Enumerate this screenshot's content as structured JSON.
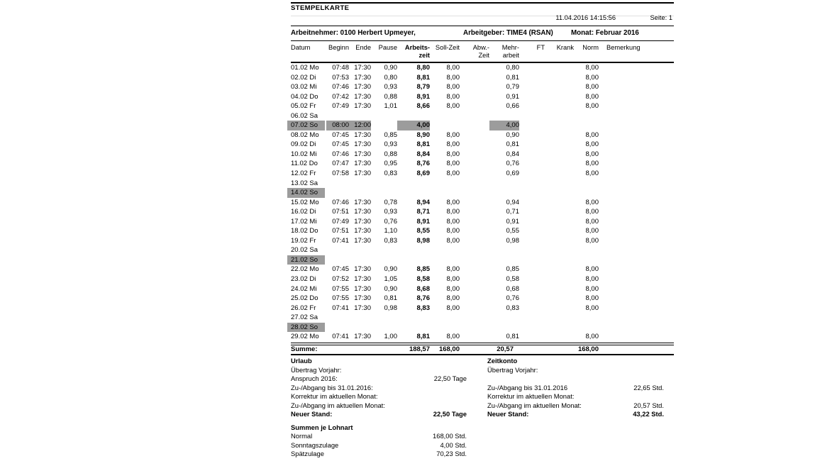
{
  "title": "STEMPELKARTE",
  "meta": {
    "printed": "11.04.2016 14:15:56",
    "page_label": "Seite: 1"
  },
  "header": {
    "employee": "Arbeitnehmer: 0100 Herbert Upmeyer,",
    "employer": "Arbeitgeber: TIME4 (RSAN)",
    "month": "Monat: Februar 2016"
  },
  "colors": {
    "highlight_gray": "#9c9c9c",
    "rule_black": "#000000",
    "rule_light": "#e0e0e0",
    "text": "#000000",
    "background": "#ffffff"
  },
  "table": {
    "columns": [
      {
        "id": "datum",
        "label": "Datum",
        "label2": ""
      },
      {
        "id": "beginn",
        "label": "Beginn",
        "label2": ""
      },
      {
        "id": "ende",
        "label": "Ende",
        "label2": ""
      },
      {
        "id": "pause",
        "label": "Pause",
        "label2": ""
      },
      {
        "id": "arbeitszeit",
        "label": "Arbeits-",
        "label2": "zeit"
      },
      {
        "id": "sollzeit",
        "label": "Soll-Zeit",
        "label2": ""
      },
      {
        "id": "abwzeit",
        "label": "Abw.-",
        "label2": "Zeit"
      },
      {
        "id": "mehrarbeit",
        "label": "Mehr-",
        "label2": "arbeit"
      },
      {
        "id": "ft",
        "label": "FT",
        "label2": ""
      },
      {
        "id": "krank",
        "label": "Krank",
        "label2": ""
      },
      {
        "id": "norm",
        "label": "Norm",
        "label2": ""
      },
      {
        "id": "bemerkung",
        "label": "Bemerkung",
        "label2": ""
      }
    ],
    "rows": [
      {
        "c": [
          "01.02 Mo",
          "07:48",
          "17:30",
          "0,90",
          "8,80",
          "8,00",
          "",
          "0,80",
          "",
          "",
          "8,00",
          ""
        ],
        "hl": []
      },
      {
        "c": [
          "02.02 Di",
          "07:53",
          "17:30",
          "0,80",
          "8,81",
          "8,00",
          "",
          "0,81",
          "",
          "",
          "8,00",
          ""
        ],
        "hl": []
      },
      {
        "c": [
          "03.02 Mi",
          "07:46",
          "17:30",
          "0,93",
          "8,79",
          "8,00",
          "",
          "0,79",
          "",
          "",
          "8,00",
          ""
        ],
        "hl": []
      },
      {
        "c": [
          "04.02 Do",
          "07:42",
          "17:30",
          "0,88",
          "8,91",
          "8,00",
          "",
          "0,91",
          "",
          "",
          "8,00",
          ""
        ],
        "hl": []
      },
      {
        "c": [
          "05.02 Fr",
          "07:49",
          "17:30",
          "1,01",
          "8,66",
          "8,00",
          "",
          "0,66",
          "",
          "",
          "8,00",
          ""
        ],
        "hl": []
      },
      {
        "c": [
          "06.02 Sa",
          "",
          "",
          "",
          "",
          "",
          "",
          "",
          "",
          "",
          "",
          ""
        ],
        "hl": []
      },
      {
        "c": [
          "07.02 So",
          "08:00",
          "12:00",
          "",
          "4,00",
          "",
          "",
          "4,00",
          "",
          "",
          "",
          ""
        ],
        "hl": [
          0,
          1,
          2,
          4,
          7
        ]
      },
      {
        "c": [
          "08.02 Mo",
          "07:45",
          "17:30",
          "0,85",
          "8,90",
          "8,00",
          "",
          "0,90",
          "",
          "",
          "8,00",
          ""
        ],
        "hl": []
      },
      {
        "c": [
          "09.02 Di",
          "07:45",
          "17:30",
          "0,93",
          "8,81",
          "8,00",
          "",
          "0,81",
          "",
          "",
          "8,00",
          ""
        ],
        "hl": []
      },
      {
        "c": [
          "10.02 Mi",
          "07:46",
          "17:30",
          "0,88",
          "8,84",
          "8,00",
          "",
          "0,84",
          "",
          "",
          "8,00",
          ""
        ],
        "hl": []
      },
      {
        "c": [
          "11.02 Do",
          "07:47",
          "17:30",
          "0,95",
          "8,76",
          "8,00",
          "",
          "0,76",
          "",
          "",
          "8,00",
          ""
        ],
        "hl": []
      },
      {
        "c": [
          "12.02 Fr",
          "07:58",
          "17:30",
          "0,83",
          "8,69",
          "8,00",
          "",
          "0,69",
          "",
          "",
          "8,00",
          ""
        ],
        "hl": []
      },
      {
        "c": [
          "13.02 Sa",
          "",
          "",
          "",
          "",
          "",
          "",
          "",
          "",
          "",
          "",
          ""
        ],
        "hl": []
      },
      {
        "c": [
          "14.02 So",
          "",
          "",
          "",
          "",
          "",
          "",
          "",
          "",
          "",
          "",
          ""
        ],
        "hl": [
          0
        ]
      },
      {
        "c": [
          "15.02 Mo",
          "07:46",
          "17:30",
          "0,78",
          "8,94",
          "8,00",
          "",
          "0,94",
          "",
          "",
          "8,00",
          ""
        ],
        "hl": []
      },
      {
        "c": [
          "16.02 Di",
          "07:51",
          "17:30",
          "0,93",
          "8,71",
          "8,00",
          "",
          "0,71",
          "",
          "",
          "8,00",
          ""
        ],
        "hl": []
      },
      {
        "c": [
          "17.02 Mi",
          "07:49",
          "17:30",
          "0,76",
          "8,91",
          "8,00",
          "",
          "0,91",
          "",
          "",
          "8,00",
          ""
        ],
        "hl": []
      },
      {
        "c": [
          "18.02 Do",
          "07:51",
          "17:30",
          "1,10",
          "8,55",
          "8,00",
          "",
          "0,55",
          "",
          "",
          "8,00",
          ""
        ],
        "hl": []
      },
      {
        "c": [
          "19.02 Fr",
          "07:41",
          "17:30",
          "0,83",
          "8,98",
          "8,00",
          "",
          "0,98",
          "",
          "",
          "8,00",
          ""
        ],
        "hl": []
      },
      {
        "c": [
          "20.02 Sa",
          "",
          "",
          "",
          "",
          "",
          "",
          "",
          "",
          "",
          "",
          ""
        ],
        "hl": []
      },
      {
        "c": [
          "21.02 So",
          "",
          "",
          "",
          "",
          "",
          "",
          "",
          "",
          "",
          "",
          ""
        ],
        "hl": [
          0
        ]
      },
      {
        "c": [
          "22.02 Mo",
          "07:45",
          "17:30",
          "0,90",
          "8,85",
          "8,00",
          "",
          "0,85",
          "",
          "",
          "8,00",
          ""
        ],
        "hl": []
      },
      {
        "c": [
          "23.02 Di",
          "07:52",
          "17:30",
          "1,05",
          "8,58",
          "8,00",
          "",
          "0,58",
          "",
          "",
          "8,00",
          ""
        ],
        "hl": []
      },
      {
        "c": [
          "24.02 Mi",
          "07:55",
          "17:30",
          "0,90",
          "8,68",
          "8,00",
          "",
          "0,68",
          "",
          "",
          "8,00",
          ""
        ],
        "hl": []
      },
      {
        "c": [
          "25.02 Do",
          "07:55",
          "17:30",
          "0,81",
          "8,76",
          "8,00",
          "",
          "0,76",
          "",
          "",
          "8,00",
          ""
        ],
        "hl": []
      },
      {
        "c": [
          "26.02 Fr",
          "07:41",
          "17:30",
          "0,98",
          "8,83",
          "8,00",
          "",
          "0,83",
          "",
          "",
          "8,00",
          ""
        ],
        "hl": []
      },
      {
        "c": [
          "27.02 Sa",
          "",
          "",
          "",
          "",
          "",
          "",
          "",
          "",
          "",
          "",
          ""
        ],
        "hl": []
      },
      {
        "c": [
          "28.02 So",
          "",
          "",
          "",
          "",
          "",
          "",
          "",
          "",
          "",
          "",
          ""
        ],
        "hl": [
          0
        ]
      },
      {
        "c": [
          "29.02 Mo",
          "07:41",
          "17:30",
          "1,00",
          "8,81",
          "8,00",
          "",
          "0,81",
          "",
          "",
          "8,00",
          ""
        ],
        "hl": []
      }
    ],
    "summe": {
      "c": [
        "Summe:",
        "",
        "",
        "",
        "188,57",
        "168,00",
        "",
        "20,57",
        "",
        "",
        "168,00",
        ""
      ]
    }
  },
  "urlaub": {
    "heading": "Urlaub",
    "rows": [
      {
        "label": "Übertrag Vorjahr:",
        "value": ""
      },
      {
        "label": "Anspruch 2016:",
        "value": "22,50 Tage"
      },
      {
        "label": "Zu-/Abgang bis 31.01.2016:",
        "value": ""
      },
      {
        "label": "Korrektur im aktuellen Monat:",
        "value": ""
      },
      {
        "label": "Zu-/Abgang im aktuellen Monat:",
        "value": ""
      },
      {
        "label": "Neuer Stand:",
        "value": "22,50 Tage",
        "bold": true
      }
    ]
  },
  "zeitkonto": {
    "heading": "Zeitkonto",
    "rows": [
      {
        "label": "Übertrag Vorjahr:",
        "value": ""
      },
      {
        "label": "",
        "value": ""
      },
      {
        "label": "Zu-/Abgang bis 31.01.2016",
        "value": "22,65 Std."
      },
      {
        "label": "Korrektur im aktuellen Monat:",
        "value": ""
      },
      {
        "label": "Zu-/Abgang im aktuellen Monat:",
        "value": "20,57 Std."
      },
      {
        "label": "Neuer Stand:",
        "value": "43,22 Std.",
        "bold": true
      }
    ]
  },
  "lohnart": {
    "heading": "Summen je Lohnart",
    "rows": [
      {
        "label": "Normal",
        "value": "168,00 Std."
      },
      {
        "label": "Sonntagszulage",
        "value": "4,00 Std."
      },
      {
        "label": "Spätzulage",
        "value": "70,23 Std."
      }
    ]
  }
}
